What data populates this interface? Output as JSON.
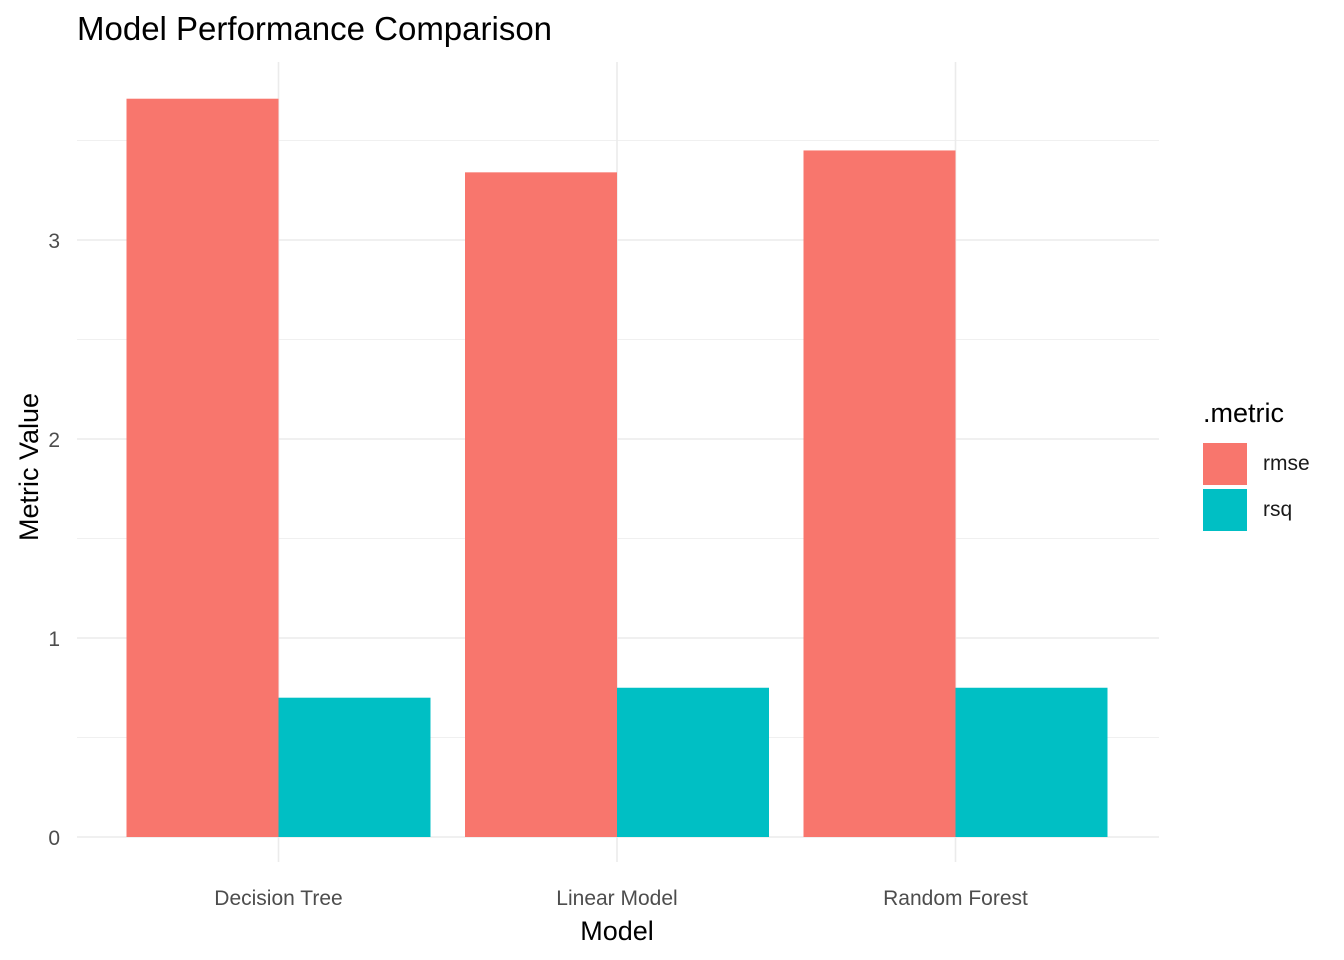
{
  "chart_data": {
    "type": "bar",
    "title": "Model Performance Comparison",
    "xlabel": "Model",
    "ylabel": "Metric Value",
    "categories": [
      "Decision Tree",
      "Linear Model",
      "Random Forest"
    ],
    "series": [
      {
        "name": "rmse",
        "color": "#F8766D",
        "values": [
          3.71,
          3.34,
          3.45
        ]
      },
      {
        "name": "rsq",
        "color": "#00BFC4",
        "values": [
          0.7,
          0.75,
          0.75
        ]
      }
    ],
    "ylim": [
      0,
      3.9
    ],
    "yticks": [
      "0",
      "1",
      "2",
      "3"
    ],
    "legend": {
      "title": ".metric",
      "position": "right"
    },
    "grid": true
  }
}
